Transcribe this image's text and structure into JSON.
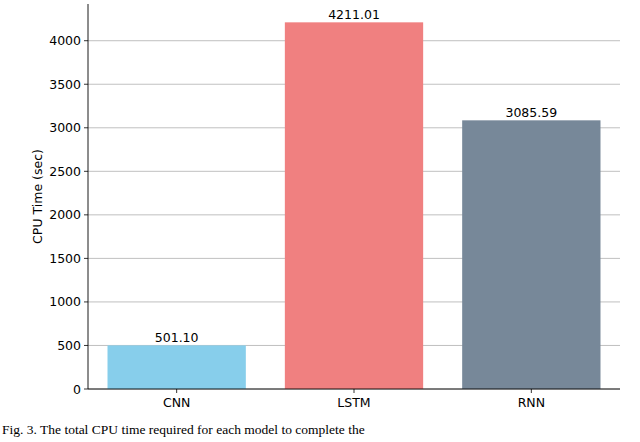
{
  "chart_data": {
    "type": "bar",
    "caption": "Fig. 3.  The total CPU time required for each model to complete the",
    "y_label": "CPU Time (sec)",
    "categories": [
      "CNN",
      "LSTM",
      "RNN"
    ],
    "values": [
      501.1,
      4211.01,
      3085.59
    ],
    "value_labels": [
      "501.10",
      "4211.01",
      "3085.59"
    ],
    "data_labels": true,
    "colors": [
      "#87ceeb",
      "#f08080",
      "#778899"
    ],
    "ylim": [
      0,
      4421.6
    ],
    "yticks": [
      0,
      500,
      1000,
      1500,
      2000,
      2500,
      3000,
      3500,
      4000
    ],
    "grid": true
  }
}
